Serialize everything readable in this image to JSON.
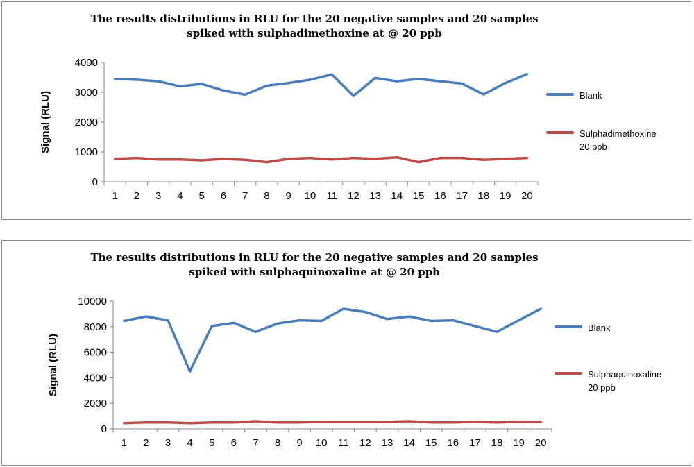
{
  "chart_data": [
    {
      "type": "line",
      "title_line1": "The  results distributions in RLU for the 20 negative samples and 20 samples",
      "title_line2": "spiked with sulphadimethoxine at @ 20 ppb",
      "xlabel": "",
      "ylabel": "Signal (RLU)",
      "ylim": [
        0,
        4000
      ],
      "yticks": [
        0,
        1000,
        2000,
        3000,
        4000
      ],
      "x": [
        1,
        2,
        3,
        4,
        5,
        6,
        7,
        8,
        9,
        10,
        11,
        12,
        13,
        14,
        15,
        16,
        17,
        18,
        19,
        20
      ],
      "legend_position": "right",
      "series": [
        {
          "name": "Blank",
          "color": "#4a7ebb",
          "values": [
            3450,
            3420,
            3370,
            3200,
            3280,
            3060,
            2920,
            3220,
            3310,
            3420,
            3600,
            2880,
            3480,
            3370,
            3450,
            3370,
            3290,
            2930,
            3310,
            3610
          ]
        },
        {
          "name": "Sulphadimethoxine 20 ppb",
          "legend_lines": [
            "Sulphadimethoxine",
            "20 ppb"
          ],
          "color": "#be4b48",
          "values": [
            770,
            800,
            750,
            750,
            720,
            770,
            740,
            660,
            770,
            800,
            750,
            800,
            770,
            820,
            660,
            800,
            800,
            740,
            770,
            800
          ]
        }
      ]
    },
    {
      "type": "line",
      "title_line1": "The  results distributions in RLU for the 20 negative samples and 20 samples",
      "title_line2": "spiked with sulphaquinoxaline at @ 20 ppb",
      "xlabel": "",
      "ylabel": "Signal (RLU)",
      "ylim": [
        0,
        10000
      ],
      "yticks": [
        0,
        2000,
        4000,
        6000,
        8000,
        10000
      ],
      "x": [
        1,
        2,
        3,
        4,
        5,
        6,
        7,
        8,
        9,
        10,
        11,
        12,
        13,
        14,
        15,
        16,
        17,
        18,
        19,
        20
      ],
      "legend_position": "right",
      "series": [
        {
          "name": "Blank",
          "color": "#4a7ebb",
          "values": [
            8450,
            8800,
            8500,
            4500,
            8050,
            8300,
            7600,
            8250,
            8500,
            8450,
            9400,
            9150,
            8600,
            8800,
            8450,
            8500,
            8050,
            7600,
            8500,
            9400
          ]
        },
        {
          "name": "Sulphaquinoxaline 20 ppb",
          "legend_lines": [
            "Sulphaquinoxaline",
            "20 ppb"
          ],
          "color": "#be4b48",
          "values": [
            450,
            500,
            500,
            450,
            500,
            500,
            600,
            500,
            500,
            550,
            550,
            550,
            550,
            600,
            500,
            500,
            550,
            500,
            550,
            550
          ]
        }
      ]
    }
  ]
}
